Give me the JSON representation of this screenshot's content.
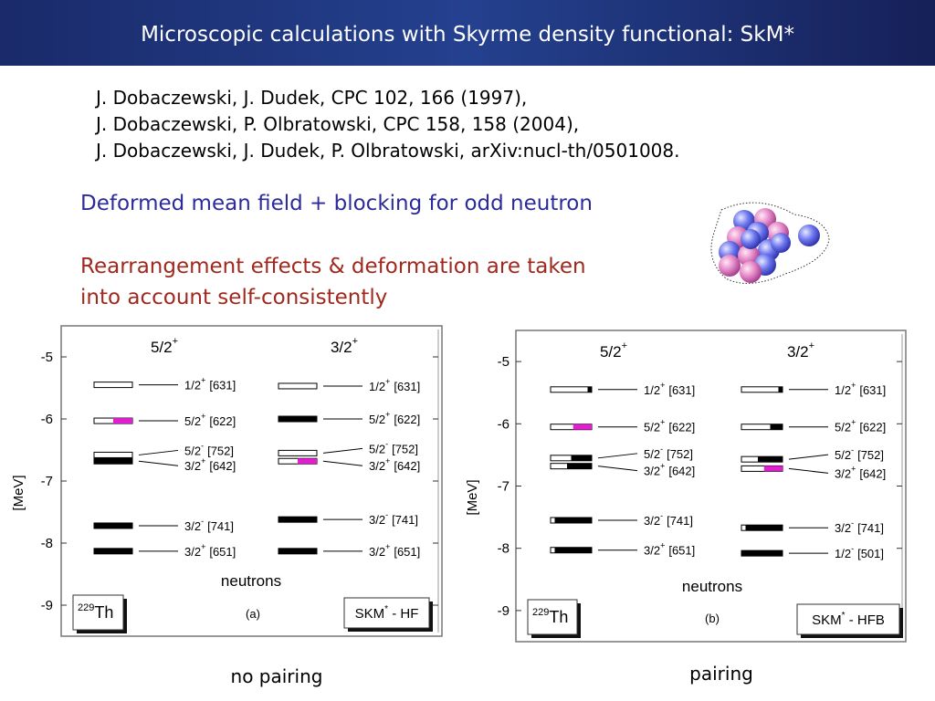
{
  "header": {
    "title": "Microscopic calculations with Skyrme density functional: SkM*"
  },
  "references": [
    "J. Dobaczewski, J. Dudek, CPC 102, 166 (1997),",
    "J. Dobaczewski, P. Olbratowski, CPC 158, 158 (2004),",
    "J. Dobaczewski, J. Dudek, P. Olbratowski, arXiv:nucl-th/0501008."
  ],
  "notes": {
    "blue": "Deformed mean field + blocking for odd neutron",
    "red": [
      "Rearrangement effects & deformation are taken",
      "into account self-consistently"
    ]
  },
  "panels": [
    {
      "y_label": "[MeV]",
      "ylim": [
        -9.5,
        -4.5
      ],
      "yticks": [
        -9,
        -8,
        -7,
        -6,
        -5
      ],
      "x_label": "neutrons",
      "tag": "(a)",
      "nucleus": {
        "mass": "229",
        "symbol": "Th"
      },
      "model": {
        "name": "SKM",
        "star": "*",
        "method": " - HF"
      },
      "caption": "no pairing",
      "columns": [
        {
          "title": {
            "spin": "5/2",
            "parity": "+"
          },
          "levels": [
            {
              "energy": -5.45,
              "occupation": 0,
              "blocked": false,
              "spin": "1/2",
              "parity": "+",
              "nilsson": "[631]"
            },
            {
              "energy": -6.03,
              "occupation": 0.5,
              "blocked": true,
              "spin": "5/2",
              "parity": "+",
              "nilsson": "[622]"
            },
            {
              "energy": -6.58,
              "occupation": 0,
              "blocked": false,
              "spin": "5/2",
              "parity": "-",
              "nilsson": "[752]"
            },
            {
              "energy": -6.68,
              "occupation": 1,
              "blocked": false,
              "spin": "3/2",
              "parity": "+",
              "nilsson": "[642]"
            },
            {
              "energy": -7.72,
              "occupation": 1,
              "blocked": false,
              "spin": "3/2",
              "parity": "-",
              "nilsson": "[741]"
            },
            {
              "energy": -8.13,
              "occupation": 1,
              "blocked": false,
              "spin": "3/2",
              "parity": "+",
              "nilsson": "[651]"
            }
          ]
        },
        {
          "title": {
            "spin": "3/2",
            "parity": "+"
          },
          "levels": [
            {
              "energy": -5.47,
              "occupation": 0,
              "blocked": false,
              "spin": "1/2",
              "parity": "+",
              "nilsson": "[631]"
            },
            {
              "energy": -6.0,
              "occupation": 1,
              "blocked": false,
              "spin": "5/2",
              "parity": "+",
              "nilsson": "[622]"
            },
            {
              "energy": -6.55,
              "occupation": 0,
              "blocked": false,
              "spin": "5/2",
              "parity": "-",
              "nilsson": "[752]"
            },
            {
              "energy": -6.68,
              "occupation": 0.5,
              "blocked": true,
              "spin": "3/2",
              "parity": "+",
              "nilsson": "[642]"
            },
            {
              "energy": -7.62,
              "occupation": 1,
              "blocked": false,
              "spin": "3/2",
              "parity": "-",
              "nilsson": "[741]"
            },
            {
              "energy": -8.13,
              "occupation": 1,
              "blocked": false,
              "spin": "3/2",
              "parity": "+",
              "nilsson": "[651]"
            }
          ]
        }
      ]
    },
    {
      "y_label": "[MeV]",
      "ylim": [
        -9.5,
        -4.5
      ],
      "yticks": [
        -9,
        -8,
        -7,
        -6,
        -5
      ],
      "x_label": "neutrons",
      "tag": "(b)",
      "nucleus": {
        "mass": "229",
        "symbol": "Th"
      },
      "model": {
        "name": "SKM",
        "star": "*",
        "method": " - HFB"
      },
      "caption": "pairing",
      "columns": [
        {
          "title": {
            "spin": "5/2",
            "parity": "+"
          },
          "levels": [
            {
              "energy": -5.45,
              "occupation": 0.1,
              "blocked": false,
              "spin": "1/2",
              "parity": "+",
              "nilsson": "[631]"
            },
            {
              "energy": -6.05,
              "occupation": 0.45,
              "blocked": true,
              "spin": "5/2",
              "parity": "+",
              "nilsson": "[622]"
            },
            {
              "energy": -6.55,
              "occupation": 0.5,
              "blocked": false,
              "spin": "5/2",
              "parity": "-",
              "nilsson": "[752]"
            },
            {
              "energy": -6.68,
              "occupation": 0.6,
              "blocked": false,
              "spin": "3/2",
              "parity": "+",
              "nilsson": "[642]"
            },
            {
              "energy": -7.55,
              "occupation": 0.9,
              "blocked": false,
              "spin": "3/2",
              "parity": "-",
              "nilsson": "[741]"
            },
            {
              "energy": -8.03,
              "occupation": 0.9,
              "blocked": false,
              "spin": "3/2",
              "parity": "+",
              "nilsson": "[651]"
            }
          ]
        },
        {
          "title": {
            "spin": "3/2",
            "parity": "+"
          },
          "levels": [
            {
              "energy": -5.45,
              "occupation": 0.1,
              "blocked": false,
              "spin": "1/2",
              "parity": "+",
              "nilsson": "[631]"
            },
            {
              "energy": -6.05,
              "occupation": 0.3,
              "blocked": false,
              "spin": "5/2",
              "parity": "+",
              "nilsson": "[622]"
            },
            {
              "energy": -6.57,
              "occupation": 0.6,
              "blocked": false,
              "spin": "5/2",
              "parity": "-",
              "nilsson": "[752]"
            },
            {
              "energy": -6.72,
              "occupation": 0.45,
              "blocked": true,
              "spin": "3/2",
              "parity": "+",
              "nilsson": "[642]"
            },
            {
              "energy": -7.67,
              "occupation": 0.9,
              "blocked": false,
              "spin": "3/2",
              "parity": "-",
              "nilsson": "[741]"
            },
            {
              "energy": -8.08,
              "occupation": 1,
              "blocked": false,
              "spin": "1/2",
              "parity": "-",
              "nilsson": "[501]"
            }
          ]
        }
      ]
    }
  ]
}
